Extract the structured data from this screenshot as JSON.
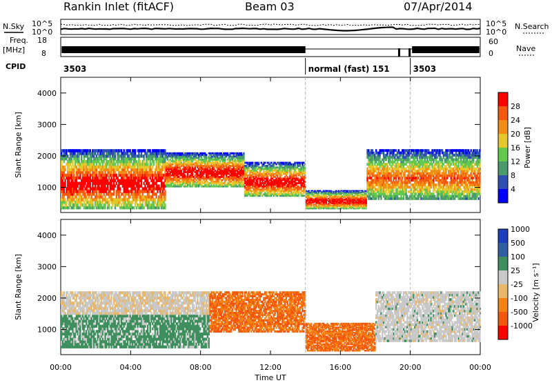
{
  "header": {
    "station": "Rankin Inlet (fitACF)",
    "beam": "Beam 03",
    "date": "07/Apr/2014"
  },
  "strips": {
    "nsky_label": "N.Sky",
    "nsearch_label": "N.Search",
    "noise_ticks": [
      "10^5",
      "10^0"
    ],
    "freq_label": "Freq.",
    "freq_unit": "[MHz]",
    "freq_ticks": [
      "18",
      "8"
    ],
    "nave_label": "Nave",
    "nave_ticks": [
      "60",
      "0"
    ],
    "cpid_label": "CPID",
    "cpid_segments": [
      {
        "text": "3503",
        "start_hour": 0
      },
      {
        "text": "normal (fast) 151",
        "start_hour": 14
      },
      {
        "text": "3503",
        "start_hour": 20
      }
    ]
  },
  "axes": {
    "ylabel": "Slant Range [km]",
    "xlabel": "Time UT",
    "y_ticks": [
      "1000",
      "2000",
      "3000",
      "4000"
    ],
    "x_ticks": [
      "00:00",
      "04:00",
      "08:00",
      "12:00",
      "16:00",
      "20:00",
      "00:00"
    ]
  },
  "colors": {
    "power": [
      "#0000ff",
      "#2e50b4",
      "#4a9a6c",
      "#62c84e",
      "#e6c72b",
      "#f28c14",
      "#f45810",
      "#ff0000"
    ],
    "velocity": [
      "#ff0000",
      "#f2560f",
      "#f28214",
      "#e8b76a",
      "#c8c8c8",
      "#3f8f5e",
      "#2f5fa2",
      "#1c3fbe"
    ]
  },
  "chart_data": {
    "type": "heatmap",
    "time_range_hours": [
      0,
      24
    ],
    "range_km": [
      200,
      4500
    ],
    "panels": [
      {
        "name": "power",
        "colorbar_label": "Power [dB]",
        "colorbar_ticks": [
          "4",
          "8",
          "12",
          "16",
          "20",
          "24",
          "28"
        ],
        "scale": [
          0,
          32
        ],
        "echo_bands": [
          {
            "t0": 0.0,
            "t1": 6.0,
            "r0": 300,
            "r1": 2200,
            "level": "strong"
          },
          {
            "t0": 6.0,
            "t1": 10.5,
            "r0": 1000,
            "r1": 2100,
            "level": "strong"
          },
          {
            "t0": 10.5,
            "t1": 14.0,
            "r0": 700,
            "r1": 1800,
            "level": "strong"
          },
          {
            "t0": 14.0,
            "t1": 17.5,
            "r0": 300,
            "r1": 900,
            "level": "strong"
          },
          {
            "t0": 17.5,
            "t1": 24.0,
            "r0": 600,
            "r1": 2200,
            "level": "moderate"
          }
        ]
      },
      {
        "name": "velocity",
        "colorbar_label": "Velocity [m s⁻¹]",
        "colorbar_ticks": [
          "-1000",
          "-500",
          "-100",
          "-25",
          "25",
          "100",
          "500",
          "1000"
        ],
        "scale": [
          -1200,
          1200
        ],
        "echo_bands": [
          {
            "t0": 0.0,
            "t1": 8.5,
            "r0": 400,
            "r1": 2200,
            "level": "mixed"
          },
          {
            "t0": 8.5,
            "t1": 14.0,
            "r0": 900,
            "r1": 2200,
            "level": "negative"
          },
          {
            "t0": 14.0,
            "t1": 18.0,
            "r0": 300,
            "r1": 1200,
            "level": "negative"
          },
          {
            "t0": 18.0,
            "t1": 24.0,
            "r0": 600,
            "r1": 2200,
            "level": "near-zero"
          }
        ]
      }
    ]
  }
}
